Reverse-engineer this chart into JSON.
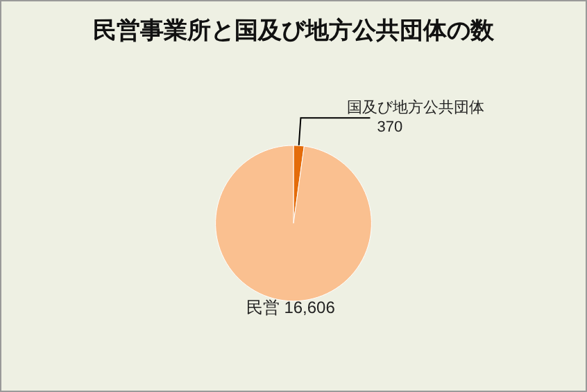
{
  "chart_data": {
    "type": "pie",
    "title": "民営事業所と国及び地方公共団体の数",
    "categories": [
      "国及び地方公共団体",
      "民営"
    ],
    "values": [
      370,
      16606
    ],
    "value_labels": [
      "370",
      "16,606"
    ],
    "colors": [
      "#e46c0a",
      "#fac090"
    ],
    "legend": false
  }
}
